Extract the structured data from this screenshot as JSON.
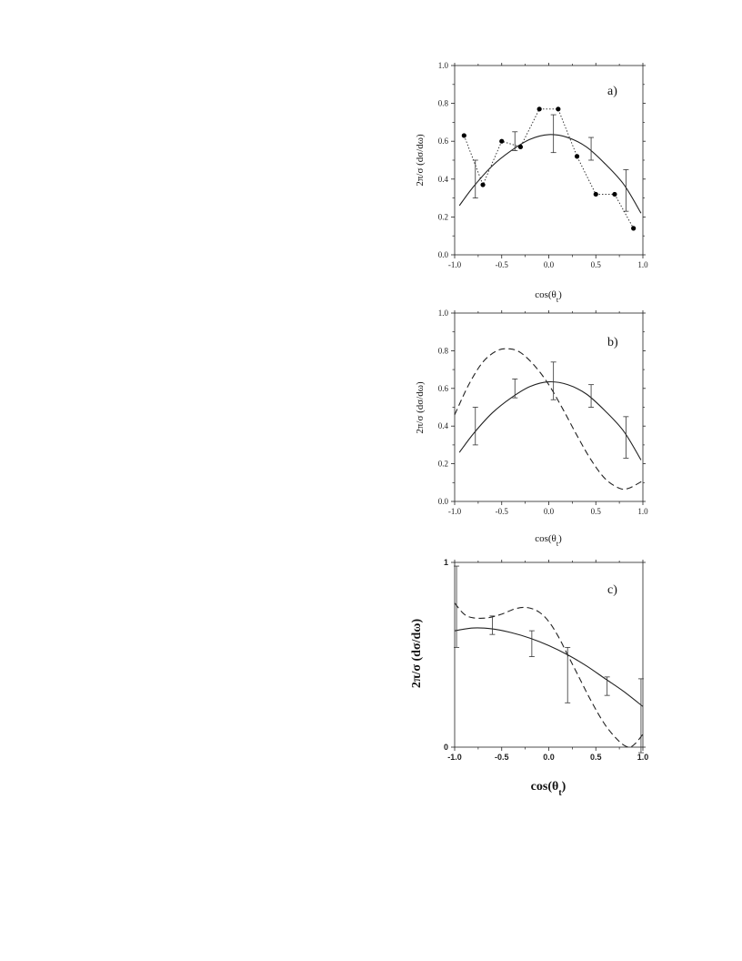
{
  "chart_data": [
    {
      "type": "line",
      "panel_label": "a)",
      "xlabel": "cos(θ_t)",
      "ylabel": "2π/σ (dσ/dω)",
      "xlim": [
        -1.0,
        1.0
      ],
      "ylim": [
        0.0,
        1.0
      ],
      "x_ticks": [
        "-1.0",
        "-0.5",
        "0.0",
        "0.5",
        "1.0"
      ],
      "y_ticks": [
        "0.0",
        "0.2",
        "0.4",
        "0.6",
        "0.8",
        "1.0"
      ],
      "grid": false,
      "series": [
        {
          "style": "solid",
          "x": [
            -0.95,
            -0.8,
            -0.6,
            -0.4,
            -0.2,
            0.0,
            0.2,
            0.4,
            0.6,
            0.8,
            0.98
          ],
          "y": [
            0.26,
            0.36,
            0.47,
            0.55,
            0.61,
            0.635,
            0.62,
            0.57,
            0.48,
            0.37,
            0.22
          ]
        },
        {
          "style": "dotted-with-markers",
          "x": [
            -0.9,
            -0.7,
            -0.5,
            -0.3,
            -0.1,
            0.1,
            0.3,
            0.5,
            0.7,
            0.9
          ],
          "y": [
            0.63,
            0.37,
            0.6,
            0.57,
            0.77,
            0.77,
            0.52,
            0.32,
            0.32,
            0.14
          ]
        },
        {
          "style": "errorbars",
          "x": [
            -0.78,
            -0.36,
            0.05,
            0.45,
            0.82
          ],
          "y": [
            0.4,
            0.6,
            0.64,
            0.56,
            0.34
          ],
          "yerr": [
            0.1,
            0.05,
            0.1,
            0.06,
            0.11
          ]
        }
      ]
    },
    {
      "type": "line",
      "panel_label": "b)",
      "xlabel": "cos(θ_t)",
      "ylabel": "2π/σ (dσ/dω)",
      "xlim": [
        -1.0,
        1.0
      ],
      "ylim": [
        0.0,
        1.0
      ],
      "x_ticks": [
        "-1.0",
        "-0.5",
        "0.0",
        "0.5",
        "1.0"
      ],
      "y_ticks": [
        "0.0",
        "0.2",
        "0.4",
        "0.6",
        "0.8",
        "1.0"
      ],
      "grid": false,
      "series": [
        {
          "style": "solid",
          "x": [
            -0.95,
            -0.8,
            -0.6,
            -0.4,
            -0.2,
            0.0,
            0.2,
            0.4,
            0.6,
            0.8,
            0.98
          ],
          "y": [
            0.26,
            0.36,
            0.47,
            0.55,
            0.61,
            0.635,
            0.62,
            0.57,
            0.48,
            0.37,
            0.22
          ]
        },
        {
          "style": "dashed",
          "x": [
            -1.0,
            -0.85,
            -0.7,
            -0.55,
            -0.42,
            -0.3,
            -0.15,
            0.0,
            0.15,
            0.3,
            0.45,
            0.6,
            0.75,
            0.85,
            1.0
          ],
          "y": [
            0.46,
            0.62,
            0.74,
            0.8,
            0.81,
            0.79,
            0.72,
            0.62,
            0.49,
            0.35,
            0.22,
            0.12,
            0.07,
            0.07,
            0.11
          ]
        },
        {
          "style": "errorbars",
          "x": [
            -0.78,
            -0.36,
            0.05,
            0.45,
            0.82
          ],
          "y": [
            0.4,
            0.6,
            0.64,
            0.56,
            0.34
          ],
          "yerr": [
            0.1,
            0.05,
            0.1,
            0.06,
            0.11
          ]
        }
      ]
    },
    {
      "type": "line",
      "panel_label": "c)",
      "xlabel": "cos(θ_t)",
      "ylabel": "2π/σ (dσ/dω)",
      "xlim": [
        -1.0,
        1.0
      ],
      "ylim": [
        0,
        1
      ],
      "x_ticks": [
        "-1.0",
        "-0.5",
        "0.0",
        "0.5",
        "1.0"
      ],
      "y_ticks": [
        "0",
        "1"
      ],
      "grid": false,
      "series": [
        {
          "style": "solid",
          "x": [
            -1.0,
            -0.8,
            -0.6,
            -0.4,
            -0.2,
            0.0,
            0.2,
            0.4,
            0.6,
            0.8,
            1.0
          ],
          "y": [
            0.63,
            0.645,
            0.64,
            0.62,
            0.59,
            0.55,
            0.5,
            0.44,
            0.37,
            0.3,
            0.22
          ]
        },
        {
          "style": "dashed",
          "x": [
            -1.0,
            -0.9,
            -0.8,
            -0.65,
            -0.5,
            -0.35,
            -0.22,
            -0.1,
            0.0,
            0.1,
            0.2,
            0.3,
            0.45,
            0.6,
            0.75,
            0.85,
            0.92,
            1.0
          ],
          "y": [
            0.78,
            0.72,
            0.7,
            0.7,
            0.72,
            0.75,
            0.755,
            0.73,
            0.68,
            0.6,
            0.5,
            0.4,
            0.25,
            0.12,
            0.03,
            0.0,
            0.02,
            0.07
          ]
        },
        {
          "style": "errorbars",
          "x": [
            -0.98,
            -0.6,
            -0.18,
            0.2,
            0.62,
            0.98
          ],
          "y": [
            0.76,
            0.66,
            0.56,
            0.39,
            0.33,
            0.17
          ],
          "yerr": [
            0.22,
            0.05,
            0.07,
            0.15,
            0.05,
            0.2
          ]
        }
      ]
    }
  ]
}
